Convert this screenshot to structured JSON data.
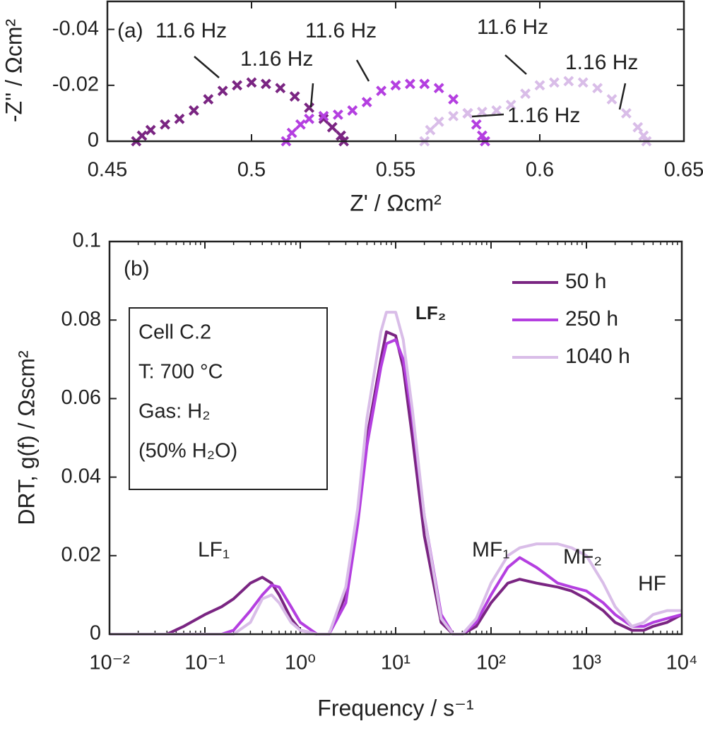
{
  "chart_data": [
    {
      "type": "scatter",
      "xlabel": "Z' / Ωcm²",
      "ylabel": "-Z'' / Ωcm²",
      "xlim": [
        0.45,
        0.65
      ],
      "xticks": [
        0.45,
        0.5,
        0.55,
        0.6,
        0.65
      ],
      "ylim": [
        0,
        -0.05
      ],
      "yticks": [
        0,
        -0.02,
        -0.04
      ],
      "annotations": [
        "(a)",
        "11.6 Hz",
        "1.16 Hz",
        "11.6 Hz",
        "11.6 Hz",
        "1.16 Hz",
        "1.16 Hz"
      ],
      "series": [
        {
          "color": "#7a2582",
          "x": [
            0.46,
            0.462,
            0.465,
            0.47,
            0.475,
            0.48,
            0.485,
            0.49,
            0.495,
            0.5,
            0.505,
            0.51,
            0.515,
            0.52,
            0.525,
            0.528,
            0.531,
            0.532
          ],
          "values": [
            0,
            -0.002,
            -0.004,
            -0.006,
            -0.008,
            -0.011,
            -0.015,
            -0.018,
            -0.02,
            -0.021,
            -0.0205,
            -0.019,
            -0.016,
            -0.012,
            -0.008,
            -0.005,
            -0.002,
            0
          ]
        },
        {
          "color": "#b43fe0",
          "x": [
            0.512,
            0.514,
            0.517,
            0.52,
            0.525,
            0.53,
            0.535,
            0.54,
            0.545,
            0.55,
            0.555,
            0.56,
            0.565,
            0.57,
            0.575,
            0.578,
            0.58,
            0.581
          ],
          "values": [
            0,
            -0.003,
            -0.006,
            -0.008,
            -0.009,
            -0.0095,
            -0.011,
            -0.014,
            -0.018,
            -0.02,
            -0.0205,
            -0.0205,
            -0.019,
            -0.015,
            -0.01,
            -0.006,
            -0.002,
            0
          ]
        },
        {
          "color": "#d9bde8",
          "x": [
            0.56,
            0.562,
            0.565,
            0.57,
            0.575,
            0.58,
            0.585,
            0.59,
            0.595,
            0.6,
            0.605,
            0.61,
            0.615,
            0.62,
            0.625,
            0.63,
            0.634,
            0.636,
            0.637
          ],
          "values": [
            0,
            -0.004,
            -0.007,
            -0.009,
            -0.01,
            -0.0105,
            -0.011,
            -0.013,
            -0.017,
            -0.02,
            -0.021,
            -0.0215,
            -0.021,
            -0.019,
            -0.015,
            -0.01,
            -0.005,
            -0.002,
            0
          ]
        }
      ]
    },
    {
      "type": "line",
      "xlabel": "Frequency / s⁻¹",
      "ylabel": "DRT, g(f) / Ωscm²",
      "xscale": "log",
      "xlim": [
        0.01,
        10000
      ],
      "xticks": [
        {
          "value": 0.01,
          "label": "10⁻²"
        },
        {
          "value": 0.1,
          "label": "10⁻¹"
        },
        {
          "value": 1,
          "label": "10⁰"
        },
        {
          "value": 10,
          "label": "10¹"
        },
        {
          "value": 100,
          "label": "10²"
        },
        {
          "value": 1000,
          "label": "10³"
        },
        {
          "value": 10000,
          "label": "10⁴"
        }
      ],
      "ylim": [
        0,
        0.1
      ],
      "yticks": [
        0,
        0.02,
        0.04,
        0.06,
        0.08,
        0.1
      ],
      "legend": "upper right",
      "annotations": [
        "(b)",
        "LF₁",
        "LF₂",
        "MF₁",
        "MF₂",
        "HF"
      ],
      "textbox": [
        "Cell C.2",
        "T: 700 °C",
        "Gas: H₂",
        "(50% H₂O)"
      ],
      "x": [
        0.01,
        0.02,
        0.04,
        0.06,
        0.1,
        0.15,
        0.2,
        0.3,
        0.4,
        0.5,
        0.6,
        0.8,
        1,
        1.5,
        2,
        3,
        4,
        5,
        7,
        8,
        10,
        12,
        15,
        20,
        30,
        40,
        50,
        70,
        100,
        150,
        200,
        300,
        500,
        700,
        1000,
        1500,
        2000,
        3000,
        4000,
        5000,
        7000,
        10000
      ],
      "series": [
        {
          "name": "50 h",
          "color": "#7a2582",
          "values": [
            0,
            0,
            0,
            0.002,
            0.005,
            0.007,
            0.009,
            0.013,
            0.0145,
            0.013,
            0.01,
            0.004,
            0.001,
            0,
            0,
            0.01,
            0.03,
            0.05,
            0.07,
            0.077,
            0.076,
            0.068,
            0.05,
            0.025,
            0.003,
            0,
            0,
            0.002,
            0.008,
            0.013,
            0.014,
            0.013,
            0.012,
            0.011,
            0.009,
            0.006,
            0.003,
            0.001,
            0.001,
            0.002,
            0.003,
            0.005
          ]
        },
        {
          "name": "250 h",
          "color": "#b43fe0",
          "values": [
            0,
            0,
            0,
            0,
            0,
            0,
            0.001,
            0.006,
            0.01,
            0.0125,
            0.012,
            0.007,
            0.003,
            0,
            0,
            0.008,
            0.028,
            0.048,
            0.068,
            0.074,
            0.075,
            0.07,
            0.055,
            0.03,
            0.005,
            0,
            0,
            0.003,
            0.01,
            0.017,
            0.0195,
            0.017,
            0.013,
            0.012,
            0.011,
            0.008,
            0.005,
            0.002,
            0.002,
            0.003,
            0.004,
            0.005
          ]
        },
        {
          "name": "1040 h",
          "color": "#d9bde8",
          "values": [
            0,
            0,
            0,
            0,
            0,
            0,
            0,
            0.003,
            0.009,
            0.01,
            0.008,
            0.003,
            0.001,
            0,
            0,
            0.012,
            0.032,
            0.055,
            0.077,
            0.082,
            0.082,
            0.075,
            0.057,
            0.03,
            0.004,
            0,
            0,
            0.004,
            0.013,
            0.02,
            0.022,
            0.023,
            0.023,
            0.022,
            0.02,
            0.013,
            0.007,
            0.002,
            0.003,
            0.005,
            0.006,
            0.006
          ]
        }
      ]
    }
  ]
}
